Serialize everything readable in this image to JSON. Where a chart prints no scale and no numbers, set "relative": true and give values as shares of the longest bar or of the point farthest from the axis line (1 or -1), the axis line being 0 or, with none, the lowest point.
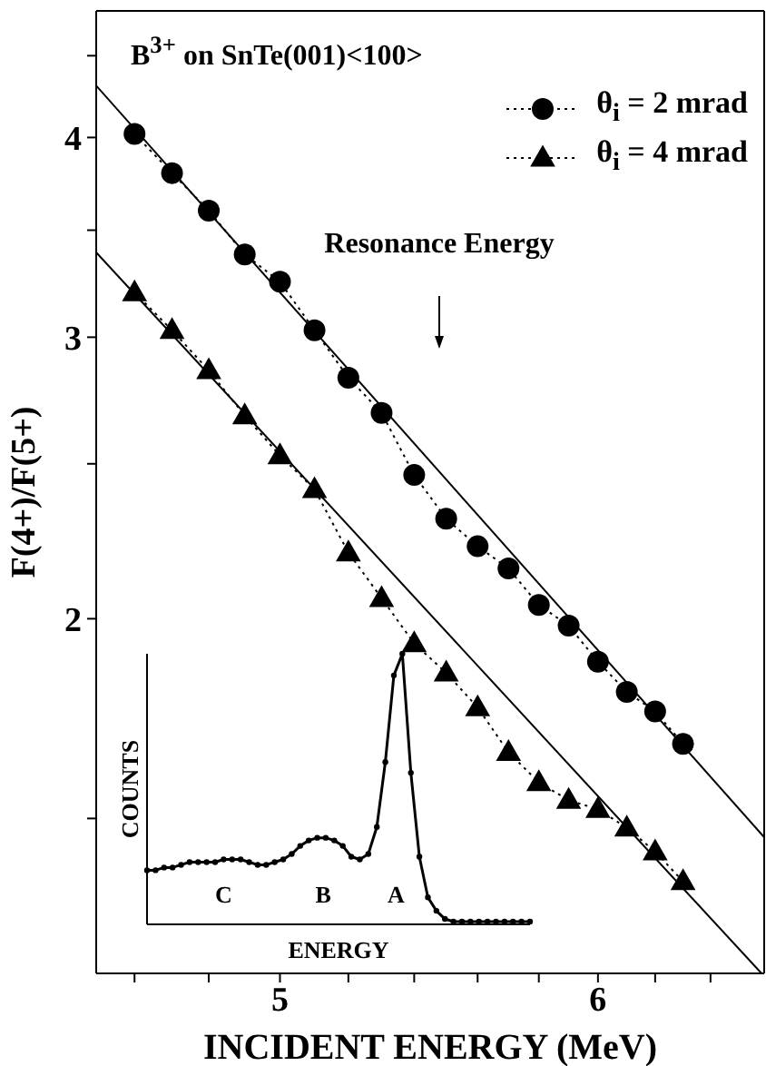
{
  "chart_data": [
    {
      "type": "line",
      "title": "B$^{3+}$ on SnTe(001)<100>",
      "xlabel": "INCIDENT ENERGY (MeV)",
      "ylabel": "F(4+)/F(5+)",
      "log": "xy",
      "xlim": [
        4.5,
        6.6
      ],
      "ylim": [
        1.2,
        4.8
      ],
      "xticks": [
        {
          "value": 4.6,
          "label": null
        },
        {
          "value": 4.8,
          "label": null
        },
        5,
        {
          "value": 5.2,
          "label": null
        },
        {
          "value": 5.4,
          "label": null
        },
        {
          "value": 5.6,
          "label": null
        },
        {
          "value": 5.8,
          "label": null
        },
        6,
        {
          "value": 6.2,
          "label": null
        },
        {
          "value": 6.4,
          "label": null
        }
      ],
      "yticks": [
        {
          "value": 1.5,
          "label": null
        },
        2,
        {
          "value": 2.5,
          "label": null
        },
        3,
        {
          "value": 3.5,
          "label": null
        },
        4,
        {
          "value": 4.5,
          "label": null
        }
      ],
      "legend": "top right",
      "annotations": [
        "Resonance Energy"
      ],
      "x": [
        4.6,
        4.7,
        4.8,
        4.9,
        5.0,
        5.1,
        5.2,
        5.3,
        5.4,
        5.5,
        5.6,
        5.7,
        5.8,
        5.9,
        6.0,
        6.1,
        6.2,
        6.3
      ],
      "series": [
        {
          "name": "θ$_{i}$ = 2 mrad",
          "color": "#000000",
          "marker": "circle",
          "line_style": "dotted",
          "values": [
            4.02,
            3.8,
            3.6,
            3.38,
            3.25,
            3.03,
            2.83,
            2.69,
            2.46,
            2.31,
            2.22,
            2.15,
            2.04,
            1.98,
            1.88,
            1.8,
            1.75,
            1.67
          ]
        },
        {
          "name": "θ$_{i}$ = 4 mrad",
          "color": "#000000",
          "marker": "triangle",
          "line_style": "dotted",
          "values": [
            3.2,
            3.03,
            2.86,
            2.68,
            2.53,
            2.41,
            2.2,
            2.06,
            1.93,
            1.85,
            1.76,
            1.65,
            1.58,
            1.54,
            1.52,
            1.48,
            1.43,
            1.37
          ]
        },
        {
          "color": "#000000",
          "marker": "none",
          "line_style": "solid",
          "x": [
            4.5,
            6.6
          ],
          "values": [
            4.31,
            1.46
          ]
        },
        {
          "color": "#000000",
          "marker": "none",
          "line_style": "solid",
          "x": [
            4.5,
            6.59
          ],
          "values": [
            3.39,
            1.2
          ]
        }
      ]
    },
    {
      "type": "line",
      "relative": true,
      "xlabel": "ENERGY",
      "ylabel": "COUNTS",
      "marker": "circle",
      "color": "#000000",
      "annotations": [
        "C",
        "B",
        "A"
      ],
      "categories": [
        null,
        null,
        null,
        null,
        null,
        null,
        null,
        null,
        null,
        null,
        null,
        null,
        null,
        null,
        null,
        null,
        null,
        null,
        null,
        null,
        null,
        null,
        null,
        null,
        null,
        null,
        null,
        null,
        null,
        null,
        null,
        null,
        null,
        null,
        null,
        null,
        null,
        null,
        null,
        null,
        null,
        null,
        null,
        null,
        null,
        null
      ],
      "values": [
        0.2,
        0.2,
        0.21,
        0.21,
        0.22,
        0.23,
        0.23,
        0.23,
        0.23,
        0.24,
        0.24,
        0.24,
        0.23,
        0.22,
        0.22,
        0.23,
        0.24,
        0.26,
        0.29,
        0.31,
        0.32,
        0.32,
        0.31,
        0.29,
        0.25,
        0.24,
        0.26,
        0.36,
        0.6,
        0.92,
        1.0,
        0.56,
        0.25,
        0.1,
        0.05,
        0.02,
        0.01,
        0.01,
        0.01,
        0.01,
        0.01,
        0.01,
        0.01,
        0.01,
        0.01,
        0.01
      ]
    }
  ]
}
